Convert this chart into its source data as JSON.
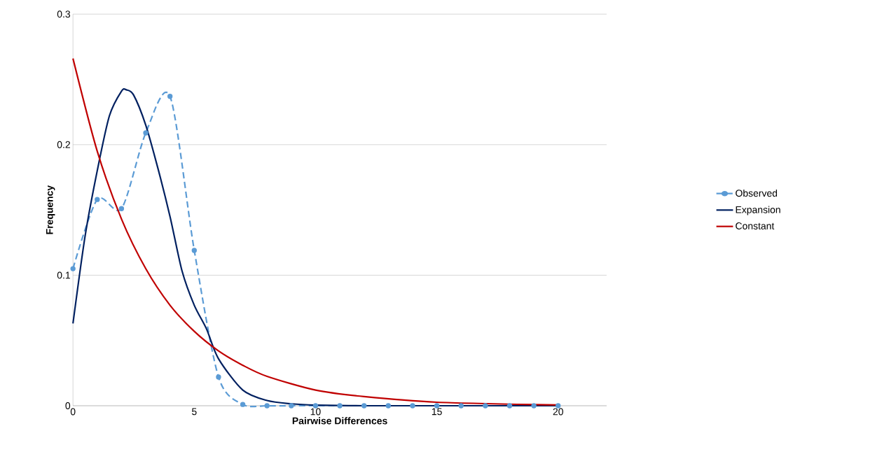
{
  "chart_data": {
    "type": "line",
    "xlabel": "Pairwise Differences",
    "ylabel": "Frequency",
    "xlim": [
      0,
      22
    ],
    "ylim": [
      0,
      0.3
    ],
    "xticks": [
      0,
      5,
      10,
      15,
      20
    ],
    "yticks": [
      0,
      0.1,
      0.2,
      0.3
    ],
    "grid": "y",
    "legend": "right",
    "series": [
      {
        "name": "Observed",
        "color": "#5b9bd5",
        "marker": "circle",
        "line_style": "dashed",
        "x": [
          0,
          1,
          2,
          3,
          4,
          5,
          6,
          7,
          8,
          9,
          10,
          11,
          12,
          13,
          14,
          15,
          16,
          17,
          18,
          19,
          20
        ],
        "values": [
          0.105,
          0.158,
          0.151,
          0.209,
          0.237,
          0.119,
          0.022,
          0.001,
          0,
          0,
          0,
          0,
          0,
          0,
          0,
          0,
          0,
          0,
          0,
          0,
          0
        ]
      },
      {
        "name": "Expansion",
        "color": "#002060",
        "marker": "none",
        "line_style": "solid",
        "x": [
          0,
          0.5,
          1,
          1.5,
          2,
          2.2,
          2.5,
          3,
          3.5,
          4,
          4.5,
          5,
          5.5,
          6,
          7,
          8,
          9,
          10,
          12,
          15,
          20
        ],
        "values": [
          0.063,
          0.13,
          0.18,
          0.222,
          0.241,
          0.242,
          0.238,
          0.215,
          0.182,
          0.145,
          0.103,
          0.077,
          0.059,
          0.036,
          0.012,
          0.004,
          0.0015,
          0.0005,
          0,
          0,
          0
        ]
      },
      {
        "name": "Constant",
        "color": "#c00000",
        "marker": "none",
        "line_style": "solid",
        "x": [
          0,
          1,
          2,
          3,
          4,
          5,
          6,
          7,
          8,
          10,
          12,
          15,
          20
        ],
        "values": [
          0.266,
          0.195,
          0.143,
          0.105,
          0.077,
          0.057,
          0.042,
          0.031,
          0.0225,
          0.012,
          0.007,
          0.0027,
          0.0006
        ]
      }
    ]
  }
}
